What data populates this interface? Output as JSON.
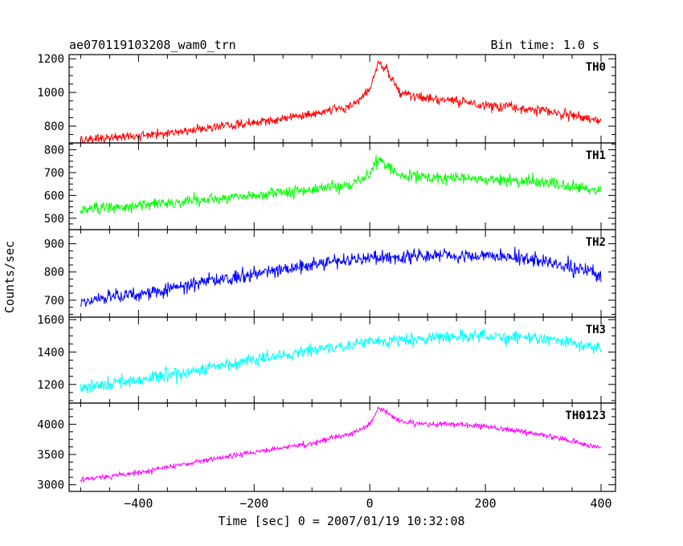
{
  "header": {
    "title": "ae070119103208_wam0_trn",
    "bin_time": "Bin time: 1.0 s"
  },
  "chart_data": {
    "type": "line",
    "xlabel": "Time [sec] 0 = 2007/01/19 10:32:08",
    "ylabel": "Counts/sec",
    "xlim": [
      -520,
      425
    ],
    "x_ticks": [
      -400,
      -200,
      0,
      200,
      400
    ],
    "x_tick_labels": [
      "−400",
      "−200",
      "0",
      "200",
      "400"
    ],
    "x_range": [
      -500,
      400
    ],
    "bin_time": 1.0,
    "grid": false,
    "legend": "panel labels at top-right",
    "panels": [
      {
        "name": "TH0",
        "color": "#ff0000",
        "ylim": [
          700,
          1225
        ],
        "y_ticks": [
          800,
          1000,
          1200
        ],
        "y_tick_labels": [
          "800",
          "1000",
          "1200"
        ],
        "noise": 45,
        "values_at": [
          [
            -500,
            720
          ],
          [
            -400,
            740
          ],
          [
            -300,
            780
          ],
          [
            -200,
            820
          ],
          [
            -100,
            870
          ],
          [
            -30,
            920
          ],
          [
            0,
            1020
          ],
          [
            15,
            1175
          ],
          [
            30,
            1130
          ],
          [
            50,
            1000
          ],
          [
            100,
            960
          ],
          [
            150,
            950
          ],
          [
            200,
            920
          ],
          [
            250,
            910
          ],
          [
            300,
            890
          ],
          [
            350,
            860
          ],
          [
            400,
            830
          ]
        ]
      },
      {
        "name": "TH1",
        "color": "#00ff00",
        "ylim": [
          450,
          830
        ],
        "y_ticks": [
          500,
          600,
          700,
          800
        ],
        "y_tick_labels": [
          "500",
          "600",
          "700",
          "800"
        ],
        "noise": 40,
        "values_at": [
          [
            -500,
            540
          ],
          [
            -400,
            555
          ],
          [
            -300,
            575
          ],
          [
            -200,
            600
          ],
          [
            -100,
            625
          ],
          [
            -30,
            650
          ],
          [
            0,
            700
          ],
          [
            15,
            760
          ],
          [
            30,
            730
          ],
          [
            50,
            690
          ],
          [
            100,
            680
          ],
          [
            200,
            670
          ],
          [
            300,
            655
          ],
          [
            400,
            620
          ]
        ]
      },
      {
        "name": "TH2",
        "color": "#0000ff",
        "ylim": [
          640,
          950
        ],
        "y_ticks": [
          700,
          800,
          900
        ],
        "y_tick_labels": [
          "700",
          "800",
          "900"
        ],
        "noise": 38,
        "values_at": [
          [
            -500,
            700
          ],
          [
            -400,
            720
          ],
          [
            -300,
            760
          ],
          [
            -200,
            795
          ],
          [
            -100,
            825
          ],
          [
            0,
            850
          ],
          [
            100,
            860
          ],
          [
            200,
            860
          ],
          [
            300,
            840
          ],
          [
            400,
            790
          ]
        ]
      },
      {
        "name": "TH3",
        "color": "#00ffff",
        "ylim": [
          1085,
          1615
        ],
        "y_ticks": [
          1200,
          1400,
          1600
        ],
        "y_tick_labels": [
          "1200",
          "1400",
          "1600"
        ],
        "noise": 60,
        "values_at": [
          [
            -500,
            1180
          ],
          [
            -400,
            1230
          ],
          [
            -300,
            1290
          ],
          [
            -200,
            1350
          ],
          [
            -100,
            1410
          ],
          [
            0,
            1460
          ],
          [
            100,
            1490
          ],
          [
            200,
            1500
          ],
          [
            300,
            1480
          ],
          [
            400,
            1430
          ]
        ]
      },
      {
        "name": "TH0123",
        "color": "#ff00ff",
        "ylim": [
          2890,
          4350
        ],
        "y_ticks": [
          3000,
          3500,
          4000
        ],
        "y_tick_labels": [
          "3000",
          "3500",
          "4000"
        ],
        "noise": 70,
        "values_at": [
          [
            -500,
            3080
          ],
          [
            -400,
            3200
          ],
          [
            -300,
            3380
          ],
          [
            -200,
            3540
          ],
          [
            -100,
            3680
          ],
          [
            -30,
            3850
          ],
          [
            0,
            4000
          ],
          [
            15,
            4270
          ],
          [
            30,
            4200
          ],
          [
            50,
            4050
          ],
          [
            100,
            3990
          ],
          [
            150,
            4000
          ],
          [
            200,
            3960
          ],
          [
            250,
            3900
          ],
          [
            300,
            3820
          ],
          [
            350,
            3720
          ],
          [
            400,
            3600
          ]
        ]
      }
    ]
  }
}
